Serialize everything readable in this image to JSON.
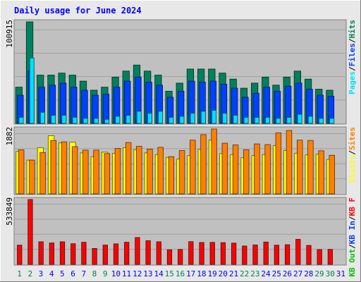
{
  "title": "Daily usage for June 2024",
  "colors": {
    "background": "#e8e8e8",
    "panel": "#c0c0c0",
    "title_text": "#0000ff",
    "hits": "#00805c",
    "files": "#0040ff",
    "pages": "#00e0ff",
    "visits": "#ffff00",
    "sites": "#ff8000",
    "kb_f": "#ff0000",
    "kb_in": "#0040ff",
    "kb_out": "#00c000",
    "weekend_day": "#00805c",
    "weekday": "#0000ff"
  },
  "chart_data": [
    {
      "type": "bar",
      "panel": "top",
      "y_max_label": "100915",
      "ylim": [
        0,
        100915
      ],
      "categories": [
        "1",
        "2",
        "3",
        "4",
        "5",
        "6",
        "7",
        "8",
        "9",
        "10",
        "11",
        "12",
        "13",
        "14",
        "15",
        "16",
        "17",
        "18",
        "19",
        "20",
        "21",
        "22",
        "23",
        "24",
        "25",
        "26",
        "27",
        "28",
        "29",
        "30",
        "31"
      ],
      "weekend_days": [
        "1",
        "2",
        "8",
        "9",
        "15",
        "16",
        "22",
        "23",
        "29",
        "30"
      ],
      "legend": [
        {
          "label": "Hits",
          "color": "#00805c"
        },
        {
          "label": "Files",
          "color": "#0040ff"
        },
        {
          "label": "Pages",
          "color": "#00e0ff"
        }
      ],
      "series": [
        {
          "name": "Hits",
          "values": [
            36000,
            100915,
            48000,
            48000,
            50000,
            48000,
            42000,
            33000,
            36000,
            46000,
            52000,
            58000,
            52000,
            48000,
            32000,
            40000,
            54000,
            54000,
            54000,
            50000,
            44000,
            35000,
            40000,
            46000,
            38000,
            46000,
            52000,
            44000,
            34000,
            33000,
            0
          ]
        },
        {
          "name": "Files",
          "values": [
            28000,
            52000,
            36000,
            38000,
            40000,
            36000,
            33000,
            28000,
            29000,
            36000,
            42000,
            46000,
            41000,
            38000,
            26000,
            32000,
            42000,
            41000,
            42000,
            39000,
            35000,
            26000,
            30000,
            36000,
            32000,
            37000,
            40000,
            34000,
            28000,
            27000,
            0
          ]
        },
        {
          "name": "Pages",
          "values": [
            6000,
            65000,
            11000,
            8000,
            8000,
            6000,
            5000,
            5000,
            4000,
            7000,
            8000,
            12000,
            10000,
            12000,
            6000,
            7000,
            10000,
            12000,
            13000,
            10000,
            8000,
            6000,
            6000,
            6000,
            5000,
            6000,
            9000,
            7000,
            5000,
            5000,
            0
          ]
        }
      ]
    },
    {
      "type": "bar",
      "panel": "middle",
      "y_max_label": "1882",
      "ylim": [
        0,
        1882
      ],
      "categories": [
        "1",
        "2",
        "3",
        "4",
        "5",
        "6",
        "7",
        "8",
        "9",
        "10",
        "11",
        "12",
        "13",
        "14",
        "15",
        "16",
        "17",
        "18",
        "19",
        "20",
        "21",
        "22",
        "23",
        "24",
        "25",
        "26",
        "27",
        "28",
        "29",
        "30",
        "31"
      ],
      "legend": [
        {
          "label": "Sites",
          "color": "#ff8000"
        },
        {
          "label": "Visits",
          "color": "#ffff00"
        }
      ],
      "series": [
        {
          "name": "Visits",
          "values": [
            1230,
            980,
            1340,
            1690,
            1480,
            1500,
            1190,
            1080,
            1210,
            1180,
            1340,
            1280,
            1190,
            1140,
            1060,
            1010,
            1110,
            1290,
            1560,
            1170,
            1140,
            1050,
            1110,
            1140,
            1400,
            1260,
            1180,
            1130,
            1150,
            1000,
            0
          ]
        },
        {
          "name": "Sites",
          "values": [
            1280,
            980,
            1200,
            1550,
            1510,
            1370,
            1270,
            1270,
            1170,
            1320,
            1490,
            1380,
            1300,
            1350,
            1080,
            1260,
            1560,
            1720,
            1882,
            1470,
            1420,
            1280,
            1450,
            1430,
            1770,
            1840,
            1560,
            1550,
            1250,
            1120,
            0
          ]
        }
      ]
    },
    {
      "type": "bar",
      "panel": "bottom",
      "y_max_label": "533849",
      "ylim": [
        0,
        533849
      ],
      "categories": [
        "1",
        "2",
        "3",
        "4",
        "5",
        "6",
        "7",
        "8",
        "9",
        "10",
        "11",
        "12",
        "13",
        "14",
        "15",
        "16",
        "17",
        "18",
        "19",
        "20",
        "21",
        "22",
        "23",
        "24",
        "25",
        "26",
        "27",
        "28",
        "29",
        "30",
        "31"
      ],
      "legend": [
        {
          "label": "KB F",
          "color": "#ff0000"
        },
        {
          "label": "KB In",
          "color": "#0040ff"
        },
        {
          "label": "KB Out",
          "color": "#00c000"
        }
      ],
      "series": [
        {
          "name": "KB F",
          "values": [
            158000,
            533849,
            186000,
            176000,
            186000,
            170000,
            182000,
            131000,
            159000,
            169000,
            182000,
            221000,
            195000,
            186000,
            120000,
            123000,
            187000,
            180000,
            181000,
            179000,
            175000,
            151000,
            160000,
            184000,
            158000,
            162000,
            206000,
            156000,
            122000,
            123000,
            0
          ]
        }
      ]
    }
  ]
}
